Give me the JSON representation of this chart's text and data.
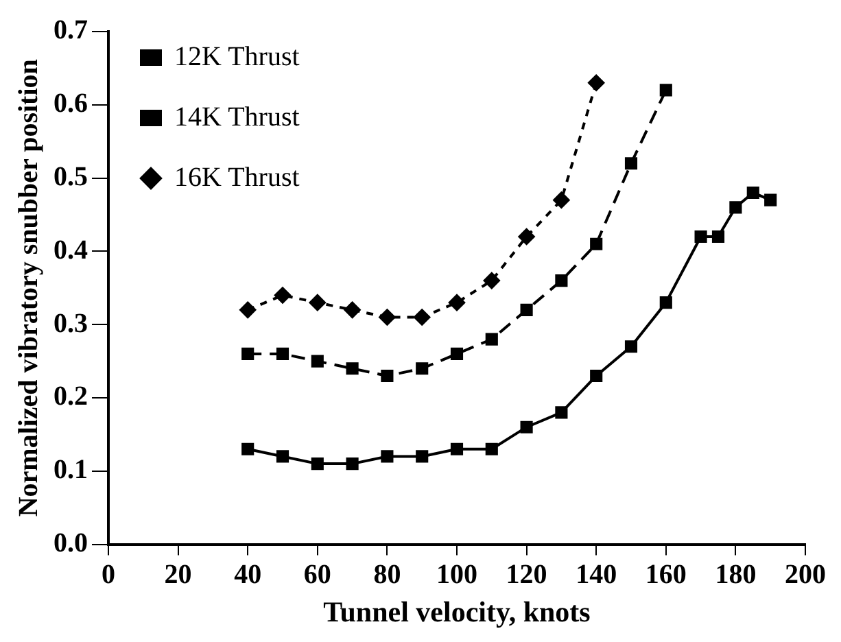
{
  "chart_data": {
    "type": "line",
    "xlabel": "Tunnel velocity, knots",
    "ylabel": "Normalized vibratory snubber position",
    "xlim": [
      0,
      200
    ],
    "xticks": [
      0,
      20,
      40,
      60,
      80,
      100,
      120,
      140,
      160,
      180,
      200
    ],
    "ylim": [
      0,
      0.7
    ],
    "yticks": [
      {
        "value": 0,
        "label": "0.0"
      },
      0.1,
      0.2,
      0.3,
      0.4,
      0.5,
      0.6,
      0.7
    ],
    "grid": false,
    "legend": "top left",
    "series": [
      {
        "name": "12K Thrust",
        "color": "#000000",
        "marker": "square",
        "line_style": "solid",
        "x": [
          40,
          50,
          60,
          70,
          80,
          90,
          100,
          110,
          120,
          130,
          140,
          150,
          160,
          170,
          175,
          180,
          185,
          190
        ],
        "values": [
          0.13,
          0.12,
          0.11,
          0.11,
          0.12,
          0.12,
          0.13,
          0.13,
          0.16,
          0.18,
          0.23,
          0.27,
          0.33,
          0.42,
          0.42,
          0.46,
          0.48,
          0.47
        ]
      },
      {
        "name": "14K Thrust",
        "color": "#000000",
        "marker": "square",
        "line_style": "dashed",
        "x": [
          40,
          50,
          60,
          70,
          80,
          90,
          100,
          110,
          120,
          130,
          140,
          150,
          160
        ],
        "values": [
          0.26,
          0.26,
          0.25,
          0.24,
          0.23,
          0.24,
          0.26,
          0.28,
          0.32,
          0.36,
          0.41,
          0.52,
          0.62
        ]
      },
      {
        "name": "16K Thrust",
        "color": "#000000",
        "marker": "diamond",
        "line_style": "dotted",
        "x": [
          40,
          50,
          60,
          70,
          80,
          90,
          100,
          110,
          120,
          130,
          140
        ],
        "values": [
          0.32,
          0.34,
          0.33,
          0.32,
          0.31,
          0.31,
          0.33,
          0.36,
          0.42,
          0.47,
          0.63
        ]
      }
    ]
  }
}
